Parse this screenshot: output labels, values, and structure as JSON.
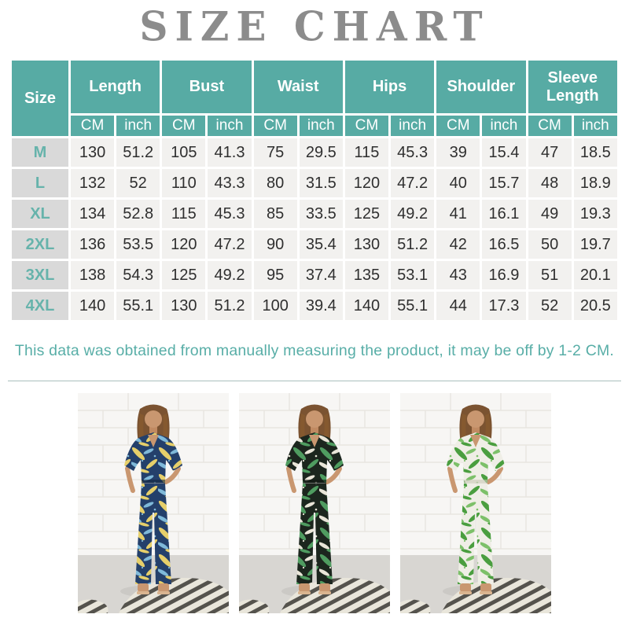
{
  "title": "SIZE CHART",
  "table": {
    "size_header": "Size",
    "measure_headers": [
      "Length",
      "Bust",
      "Waist",
      "Hips",
      "Shoulder",
      "Sleeve Length"
    ],
    "unit_headers": [
      "CM",
      "inch"
    ],
    "rows": [
      {
        "size": "M",
        "values": [
          "130",
          "51.2",
          "105",
          "41.3",
          "75",
          "29.5",
          "115",
          "45.3",
          "39",
          "15.4",
          "47",
          "18.5"
        ]
      },
      {
        "size": "L",
        "values": [
          "132",
          "52",
          "110",
          "43.3",
          "80",
          "31.5",
          "120",
          "47.2",
          "40",
          "15.7",
          "48",
          "18.9"
        ]
      },
      {
        "size": "XL",
        "values": [
          "134",
          "52.8",
          "115",
          "45.3",
          "85",
          "33.5",
          "125",
          "49.2",
          "41",
          "16.1",
          "49",
          "19.3"
        ]
      },
      {
        "size": "2XL",
        "values": [
          "136",
          "53.5",
          "120",
          "47.2",
          "90",
          "35.4",
          "130",
          "51.2",
          "42",
          "16.5",
          "50",
          "19.7"
        ]
      },
      {
        "size": "3XL",
        "values": [
          "138",
          "54.3",
          "125",
          "49.2",
          "95",
          "37.4",
          "135",
          "53.1",
          "43",
          "16.9",
          "51",
          "20.1"
        ]
      },
      {
        "size": "4XL",
        "values": [
          "140",
          "55.1",
          "130",
          "51.2",
          "100",
          "39.4",
          "140",
          "55.1",
          "44",
          "17.3",
          "52",
          "20.5"
        ]
      }
    ]
  },
  "note": "This data was obtained from manually measuring the product, it may be off by 1-2 CM.",
  "colors": {
    "header_teal": "#57aba4",
    "size_label_teal": "#66b3ab",
    "size_cell_gray": "#d9d9d9",
    "data_cell_gray": "#f2f1ef",
    "title_gray": "#8c8c8c",
    "note_teal": "#58aea7",
    "divider_gray": "#a9bfbd"
  },
  "photos": [
    {
      "name": "navy-yellow-leaf-jumpsuit",
      "colors": {
        "base": "#24406b",
        "leaf1": "#e6cf6a",
        "leaf2": "#7fb9d9",
        "dark": "#14263f"
      }
    },
    {
      "name": "black-green-leaf-jumpsuit",
      "colors": {
        "base": "#1c261e",
        "leaf1": "#4f9c60",
        "leaf2": "#e9e5d8",
        "dark": "#0f1510"
      }
    },
    {
      "name": "white-green-leaf-jumpsuit",
      "colors": {
        "base": "#efeee6",
        "leaf1": "#4a9e3f",
        "leaf2": "#7cc069",
        "dark": "#c9cab8"
      }
    }
  ],
  "chart_data": {
    "type": "table",
    "title": "SIZE CHART",
    "columns": [
      "Size",
      "Length CM",
      "Length inch",
      "Bust CM",
      "Bust inch",
      "Waist CM",
      "Waist inch",
      "Hips CM",
      "Hips inch",
      "Shoulder CM",
      "Shoulder inch",
      "Sleeve Length CM",
      "Sleeve Length inch"
    ],
    "rows": [
      [
        "M",
        130,
        51.2,
        105,
        41.3,
        75,
        29.5,
        115,
        45.3,
        39,
        15.4,
        47,
        18.5
      ],
      [
        "L",
        132,
        52,
        110,
        43.3,
        80,
        31.5,
        120,
        47.2,
        40,
        15.7,
        48,
        18.9
      ],
      [
        "XL",
        134,
        52.8,
        115,
        45.3,
        85,
        33.5,
        125,
        49.2,
        41,
        16.1,
        49,
        19.3
      ],
      [
        "2XL",
        136,
        53.5,
        120,
        47.2,
        90,
        35.4,
        130,
        51.2,
        42,
        16.5,
        50,
        19.7
      ],
      [
        "3XL",
        138,
        54.3,
        125,
        49.2,
        95,
        37.4,
        135,
        53.1,
        43,
        16.9,
        51,
        20.1
      ],
      [
        "4XL",
        140,
        55.1,
        130,
        51.2,
        100,
        39.4,
        140,
        55.1,
        44,
        17.3,
        52,
        20.5
      ]
    ],
    "footnote": "This data was obtained from manually measuring the product, it may be off by 1-2 CM."
  }
}
